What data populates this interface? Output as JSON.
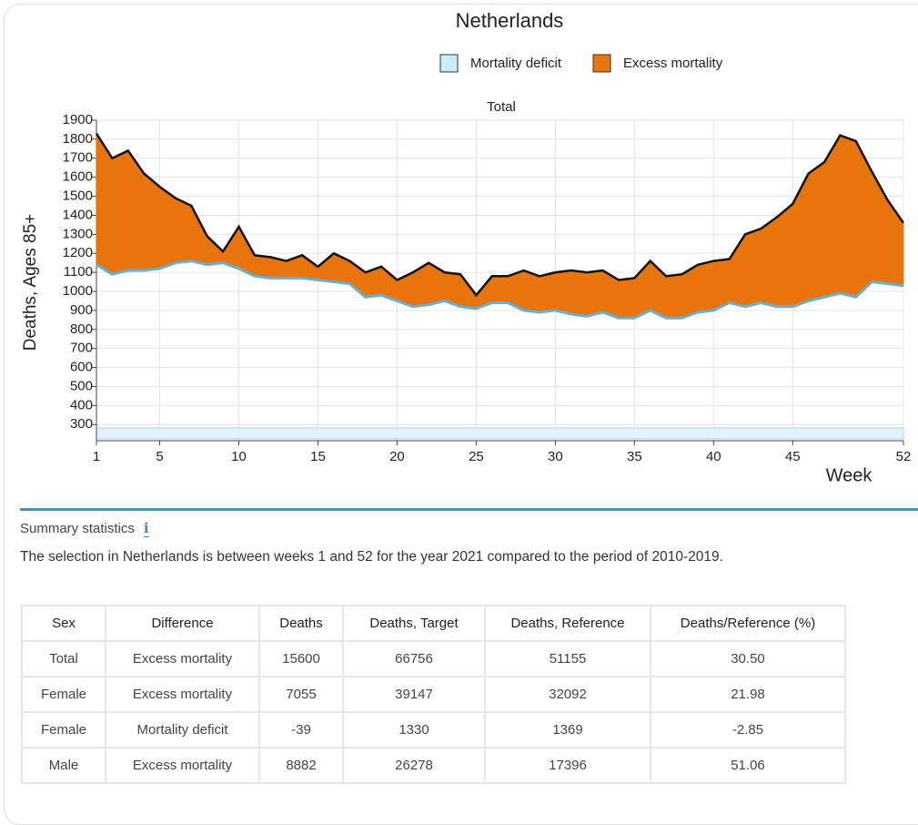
{
  "chart_data": {
    "type": "area",
    "title": "Netherlands",
    "subtitle": "Total",
    "y_label": "Deaths, Ages 85+",
    "x_label": "Week",
    "x": [
      1,
      2,
      3,
      4,
      5,
      6,
      7,
      8,
      9,
      10,
      11,
      12,
      13,
      14,
      15,
      16,
      17,
      18,
      19,
      20,
      21,
      22,
      23,
      24,
      25,
      26,
      27,
      28,
      29,
      30,
      31,
      32,
      33,
      34,
      35,
      36,
      37,
      38,
      39,
      40,
      41,
      42,
      43,
      44,
      45,
      46,
      47,
      48,
      49,
      50,
      51,
      52
    ],
    "legend": [
      {
        "name": "Mortality deficit",
        "color": "#c8eef8"
      },
      {
        "name": "Excess mortality",
        "color": "#e8740c"
      }
    ],
    "series": [
      {
        "color": "#111111",
        "values": [
          1830,
          1700,
          1740,
          1620,
          1550,
          1490,
          1450,
          1290,
          1210,
          1340,
          1190,
          1180,
          1160,
          1190,
          1130,
          1200,
          1160,
          1100,
          1130,
          1060,
          1100,
          1150,
          1100,
          1090,
          980,
          1080,
          1080,
          1110,
          1080,
          1100,
          1110,
          1100,
          1110,
          1060,
          1070,
          1160,
          1080,
          1090,
          1140,
          1160,
          1170,
          1300,
          1330,
          1390,
          1460,
          1620,
          1680,
          1820,
          1790,
          1630,
          1480,
          1360
        ]
      },
      {
        "color": "#6aaed0",
        "values": [
          1140,
          1090,
          1110,
          1110,
          1120,
          1150,
          1160,
          1140,
          1150,
          1120,
          1080,
          1070,
          1070,
          1070,
          1060,
          1050,
          1040,
          970,
          980,
          950,
          920,
          930,
          950,
          920,
          910,
          940,
          940,
          900,
          890,
          900,
          880,
          870,
          890,
          860,
          860,
          900,
          860,
          860,
          890,
          900,
          940,
          920,
          940,
          920,
          920,
          950,
          970,
          990,
          970,
          1050,
          1040,
          1030
        ]
      }
    ],
    "xlim": [
      1,
      52
    ],
    "xticks": [
      1,
      5,
      10,
      15,
      20,
      25,
      30,
      35,
      40,
      45,
      52
    ],
    "ylim": [
      215,
      1900
    ],
    "yticks": [
      300,
      400,
      500,
      600,
      700,
      800,
      900,
      1000,
      1100,
      1200,
      1300,
      1400,
      1500,
      1600,
      1700,
      1800,
      1900
    ],
    "grid": true
  },
  "summary": {
    "title": "Summary statistics",
    "icon": "i",
    "text": "The selection in Netherlands is between weeks 1 and 52 for the year 2021 compared to the period of 2010-2019."
  },
  "table": {
    "header": [
      "Sex",
      "Difference",
      "Deaths",
      "Deaths, Target",
      "Deaths, Reference",
      "Deaths/Reference (%)"
    ],
    "rows": [
      [
        "Total",
        "Excess mortality",
        "15600",
        "66756",
        "51155",
        "30.50"
      ],
      [
        "Female",
        "Excess mortality",
        "7055",
        "39147",
        "32092",
        "21.98"
      ],
      [
        "Female",
        "Mortality deficit",
        "-39",
        "1330",
        "1369",
        "-2.85"
      ],
      [
        "Male",
        "Excess mortality",
        "8882",
        "26278",
        "17396",
        "51.06"
      ]
    ]
  }
}
